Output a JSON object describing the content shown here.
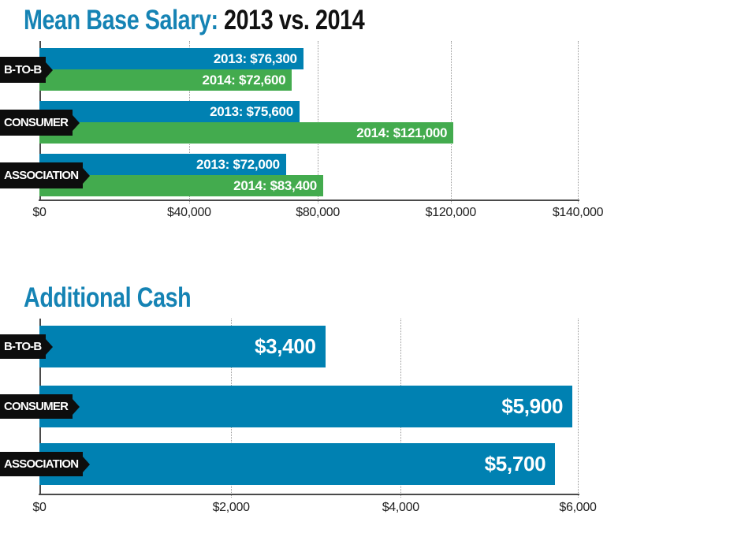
{
  "colors": {
    "bar_blue": "#0081B2",
    "bar_green": "#43AB4E",
    "title_blue": "#1583B4",
    "ribbon_black": "#0D0D0D",
    "axis_line": "#4A4A4A",
    "gridline": "#999999",
    "bar_text": "#FFFFFF",
    "tick_text": "#222222"
  },
  "chart_data": [
    {
      "id": "mean-base-salary",
      "type": "bar",
      "orientation": "horizontal",
      "title": "Mean Base Salary:",
      "subtitle": "2013 vs. 2014",
      "grid": "vertical-dotted",
      "legend_position": "none",
      "categories": [
        "B-TO-B",
        "CONSUMER",
        "ASSOCIATION"
      ],
      "series": [
        {
          "name": "2013",
          "color": "#0081B2",
          "values": [
            76300,
            75600,
            72000
          ]
        },
        {
          "name": "2014",
          "color": "#43AB4E",
          "values": [
            72600,
            121000,
            83400
          ]
        }
      ],
      "axis": {
        "min": 0,
        "max": 140000,
        "ticks": [
          {
            "label": "$0",
            "value": 0,
            "pos_pct": 0
          },
          {
            "label": "$40,000",
            "value": 40000,
            "pos_pct": 27.8
          },
          {
            "label": "$80,000",
            "value": 80000,
            "pos_pct": 51.7
          },
          {
            "label": "$120,000",
            "value": 120000,
            "pos_pct": 76.4
          },
          {
            "label": "$140,000",
            "value": 140000,
            "pos_pct": 100
          }
        ]
      },
      "rows": [
        {
          "category": "B-TO-B",
          "bars": [
            {
              "series": "2013",
              "value": 76300,
              "label": "2013: $76,300",
              "color": "#0081B2",
              "end_pct": 49.0
            },
            {
              "series": "2014",
              "value": 72600,
              "label": "2014: $72,600",
              "color": "#43AB4E",
              "end_pct": 46.9
            }
          ]
        },
        {
          "category": "CONSUMER",
          "bars": [
            {
              "series": "2013",
              "value": 75600,
              "label": "2013: $75,600",
              "color": "#0081B2",
              "end_pct": 48.3
            },
            {
              "series": "2014",
              "value": 121000,
              "label": "2014: $121,000",
              "color": "#43AB4E",
              "end_pct": 76.9
            }
          ]
        },
        {
          "category": "ASSOCIATION",
          "bars": [
            {
              "series": "2013",
              "value": 72000,
              "label": "2013: $72,000",
              "color": "#0081B2",
              "end_pct": 45.8
            },
            {
              "series": "2014",
              "value": 83400,
              "label": "2014: $83,400",
              "color": "#43AB4E",
              "end_pct": 52.7
            }
          ]
        }
      ]
    },
    {
      "id": "additional-cash",
      "type": "bar",
      "orientation": "horizontal",
      "title": "Additional Cash",
      "subtitle": "",
      "grid": "vertical-dotted",
      "legend_position": "none",
      "categories": [
        "B-TO-B",
        "CONSUMER",
        "ASSOCIATION"
      ],
      "series": [
        {
          "name": "Additional Cash",
          "color": "#0081B2",
          "values": [
            3400,
            5900,
            5700
          ]
        }
      ],
      "axis": {
        "min": 0,
        "max": 6000,
        "ticks": [
          {
            "label": "$0",
            "value": 0,
            "pos_pct": 0
          },
          {
            "label": "$2,000",
            "value": 2000,
            "pos_pct": 35.6
          },
          {
            "label": "$4,000",
            "value": 4000,
            "pos_pct": 67.1
          },
          {
            "label": "$6,000",
            "value": 6000,
            "pos_pct": 100
          }
        ]
      },
      "rows": [
        {
          "category": "B-TO-B",
          "bars": [
            {
              "series": "Additional Cash",
              "value": 3400,
              "label": "$3,400",
              "color": "#0081B2",
              "end_pct": 53.1
            }
          ]
        },
        {
          "category": "CONSUMER",
          "bars": [
            {
              "series": "Additional Cash",
              "value": 5900,
              "label": "$5,900",
              "color": "#0081B2",
              "end_pct": 99.0
            }
          ]
        },
        {
          "category": "ASSOCIATION",
          "bars": [
            {
              "series": "Additional Cash",
              "value": 5700,
              "label": "$5,700",
              "color": "#0081B2",
              "end_pct": 95.8
            }
          ]
        }
      ]
    }
  ]
}
